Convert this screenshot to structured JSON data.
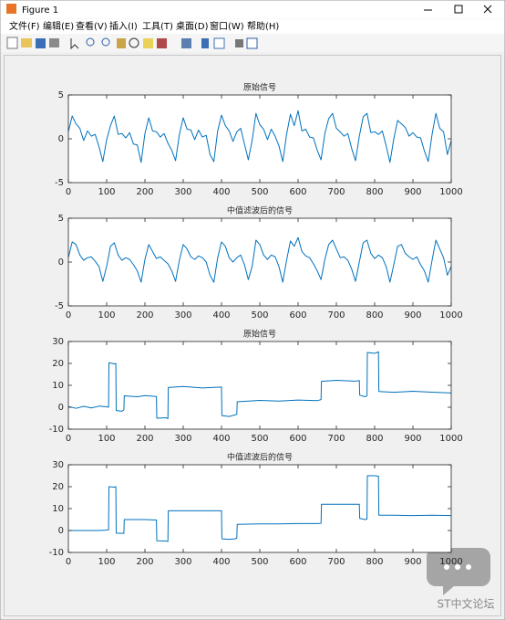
{
  "window": {
    "title": "Figure 1",
    "menu": [
      "文件(F)",
      "编辑(E)",
      "查看(V)",
      "插入(I)",
      "工具(T)",
      "桌面(D)",
      "窗口(W)",
      "帮助(H)"
    ]
  },
  "watermark": "ST中文论坛",
  "chart_data": [
    {
      "type": "line",
      "title": "原始信号",
      "color": "#0072bd",
      "x": [
        0,
        10,
        20,
        30,
        40,
        50,
        60,
        70,
        80,
        90,
        100,
        110,
        120,
        130,
        140,
        150,
        160,
        170,
        180,
        190,
        200,
        210,
        220,
        230,
        240,
        250,
        260,
        270,
        280,
        290,
        300,
        310,
        320,
        330,
        340,
        350,
        360,
        370,
        380,
        390,
        400,
        410,
        420,
        430,
        440,
        450,
        460,
        470,
        480,
        490,
        500,
        510,
        520,
        530,
        540,
        550,
        560,
        570,
        580,
        590,
        600,
        610,
        620,
        630,
        640,
        650,
        660,
        670,
        680,
        690,
        700,
        710,
        720,
        730,
        740,
        750,
        760,
        770,
        780,
        790,
        800,
        810,
        820,
        830,
        840,
        850,
        860,
        870,
        880,
        890,
        900,
        910,
        920,
        930,
        940,
        950,
        960,
        970,
        980,
        990,
        1000
      ],
      "values": [
        0.8,
        2.6,
        1.7,
        1.2,
        -0.2,
        0.9,
        0.3,
        0.5,
        -0.9,
        -2.6,
        -0.1,
        1.5,
        2.6,
        0.5,
        0.6,
        0.1,
        0.7,
        -0.6,
        -0.7,
        -2.7,
        0.6,
        2.4,
        0.9,
        0.8,
        0.2,
        0.6,
        -0.5,
        -1.3,
        -2.5,
        0.5,
        2.4,
        1.1,
        1.0,
        -0.1,
        1.0,
        0.2,
        0.4,
        -1.8,
        -2.6,
        0.9,
        2.7,
        1.5,
        0.9,
        -0.3,
        0.8,
        1.2,
        -0.6,
        -2.4,
        -0.2,
        2.9,
        1.6,
        1.1,
        -0.1,
        1.1,
        0.3,
        -0.8,
        -2.6,
        0.5,
        2.8,
        1.5,
        3.2,
        0.9,
        1.1,
        0.2,
        0.1,
        -1.3,
        -2.4,
        0.6,
        2.3,
        2.9,
        1.2,
        0.8,
        0.3,
        0.6,
        -1.1,
        -2.5,
        0.3,
        2.5,
        2.9,
        0.7,
        0.8,
        0.5,
        0.9,
        -0.8,
        -2.7,
        0.0,
        2.1,
        1.7,
        1.3,
        0.3,
        0.7,
        0.2,
        0.1,
        -1.4,
        -2.6,
        0.5,
        2.9,
        1.2,
        0.8,
        -1.8,
        -0.2
      ],
      "xlim": [
        0,
        1000
      ],
      "xticks": [
        0,
        100,
        200,
        300,
        400,
        500,
        600,
        700,
        800,
        900,
        1000
      ],
      "ylim": [
        -5,
        5
      ],
      "yticks": [
        -5,
        0,
        5
      ]
    },
    {
      "type": "line",
      "title": "中值滤波后的信号",
      "color": "#0072bd",
      "x": [
        0,
        10,
        20,
        30,
        40,
        50,
        60,
        70,
        80,
        90,
        100,
        110,
        120,
        130,
        140,
        150,
        160,
        170,
        180,
        190,
        200,
        210,
        220,
        230,
        240,
        250,
        260,
        270,
        280,
        290,
        300,
        310,
        320,
        330,
        340,
        350,
        360,
        370,
        380,
        390,
        400,
        410,
        420,
        430,
        440,
        450,
        460,
        470,
        480,
        490,
        500,
        510,
        520,
        530,
        540,
        550,
        560,
        570,
        580,
        590,
        600,
        610,
        620,
        630,
        640,
        650,
        660,
        670,
        680,
        690,
        700,
        710,
        720,
        730,
        740,
        750,
        760,
        770,
        780,
        790,
        800,
        810,
        820,
        830,
        840,
        850,
        860,
        870,
        880,
        890,
        900,
        910,
        920,
        930,
        940,
        950,
        960,
        970,
        980,
        990,
        1000
      ],
      "values": [
        0.5,
        2.3,
        2.0,
        0.8,
        0.2,
        0.5,
        0.6,
        0.1,
        -0.5,
        -2.2,
        -0.5,
        1.8,
        2.2,
        0.8,
        0.2,
        0.5,
        0.3,
        -0.3,
        -1.0,
        -2.3,
        0.3,
        2.0,
        1.2,
        0.4,
        0.6,
        0.2,
        -0.2,
        -1.0,
        -2.2,
        0.2,
        2.0,
        1.5,
        0.6,
        0.3,
        0.7,
        0.5,
        0.0,
        -1.5,
        -2.3,
        0.5,
        2.3,
        1.8,
        0.5,
        0.0,
        0.5,
        0.8,
        -0.3,
        -2.0,
        -0.5,
        2.5,
        2.0,
        0.8,
        0.3,
        0.8,
        0.6,
        -0.5,
        -2.3,
        0.2,
        2.4,
        1.8,
        2.8,
        1.2,
        0.7,
        0.5,
        -0.2,
        -1.0,
        -2.0,
        0.3,
        2.0,
        2.5,
        1.5,
        0.5,
        0.6,
        0.2,
        -0.8,
        -2.2,
        0.0,
        2.2,
        2.5,
        1.0,
        0.4,
        0.8,
        0.5,
        -0.5,
        -2.3,
        -0.3,
        1.8,
        2.0,
        1.0,
        0.6,
        0.3,
        0.6,
        -0.3,
        -1.0,
        -2.3,
        0.2,
        2.5,
        1.5,
        0.5,
        -1.5,
        -0.5
      ],
      "xlim": [
        0,
        1000
      ],
      "xticks": [
        0,
        100,
        200,
        300,
        400,
        500,
        600,
        700,
        800,
        900,
        1000
      ],
      "ylim": [
        -5,
        5
      ],
      "yticks": [
        -5,
        0,
        5
      ]
    },
    {
      "type": "line",
      "title": "原始信号",
      "color": "#0072bd",
      "x": [
        0,
        20,
        40,
        60,
        80,
        100,
        105,
        106,
        120,
        124,
        125,
        140,
        145,
        146,
        180,
        200,
        230,
        231,
        255,
        260,
        261,
        300,
        350,
        400,
        401,
        420,
        435,
        440,
        441,
        500,
        550,
        600,
        650,
        660,
        661,
        700,
        750,
        760,
        761,
        775,
        780,
        781,
        800,
        810,
        811,
        850,
        900,
        950,
        1000
      ],
      "values": [
        0.3,
        -0.5,
        0.4,
        -0.3,
        0.5,
        0.2,
        0.0,
        20.3,
        19.8,
        20.0,
        -1.5,
        -1.8,
        -1.2,
        5.2,
        4.8,
        5.3,
        4.9,
        -5.0,
        -4.8,
        -5.2,
        9.0,
        9.5,
        8.8,
        9.2,
        -3.8,
        -4.2,
        -3.5,
        -3.2,
        2.5,
        3.1,
        2.8,
        3.3,
        3.0,
        3.5,
        11.8,
        12.3,
        11.9,
        12.2,
        5.5,
        4.8,
        5.2,
        25.0,
        24.6,
        25.3,
        7.2,
        6.8,
        7.3,
        6.9,
        6.5
      ],
      "xlim": [
        0,
        1000
      ],
      "xticks": [
        0,
        100,
        200,
        300,
        400,
        500,
        600,
        700,
        800,
        900,
        1000
      ],
      "ylim": [
        -10,
        30
      ],
      "yticks": [
        -10,
        0,
        10,
        20,
        30
      ]
    },
    {
      "type": "line",
      "title": "中值滤波后的信号",
      "color": "#0072bd",
      "x": [
        0,
        20,
        40,
        60,
        80,
        100,
        105,
        106,
        120,
        124,
        125,
        140,
        145,
        146,
        180,
        200,
        230,
        231,
        255,
        260,
        261,
        300,
        350,
        400,
        401,
        420,
        435,
        440,
        441,
        500,
        550,
        600,
        650,
        660,
        661,
        700,
        750,
        760,
        761,
        775,
        780,
        781,
        800,
        810,
        811,
        850,
        900,
        950,
        1000
      ],
      "values": [
        0,
        0,
        0,
        0,
        0,
        0.2,
        0.3,
        20,
        19.8,
        20,
        -1.2,
        -1.3,
        -1.3,
        5,
        5,
        5,
        4.8,
        -4.7,
        -4.8,
        -5,
        9,
        9,
        9,
        9,
        -3.8,
        -4,
        -3.8,
        -3.5,
        2.8,
        3,
        3,
        3.2,
        3.2,
        3.3,
        12,
        12,
        12,
        12,
        5.5,
        5,
        5.2,
        25,
        25,
        24.8,
        7,
        7,
        6.8,
        7,
        6.8
      ],
      "xlim": [
        0,
        1000
      ],
      "xticks": [
        0,
        100,
        200,
        300,
        400,
        500,
        600,
        700,
        800,
        900,
        1000
      ],
      "ylim": [
        -10,
        30
      ],
      "yticks": [
        -10,
        0,
        10,
        20,
        30
      ]
    }
  ]
}
